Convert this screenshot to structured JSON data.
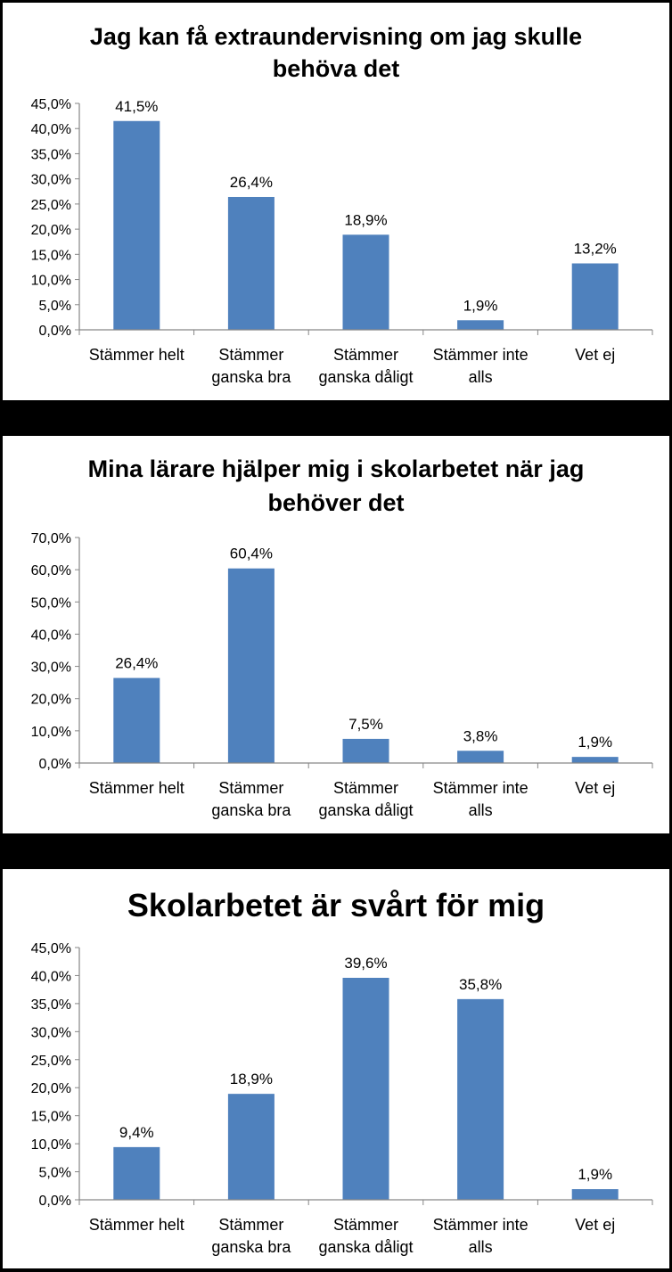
{
  "chart_data": [
    {
      "type": "bar",
      "title_lines": [
        "Jag kan få extraundervisning om jag skulle",
        "behöva det"
      ],
      "categories": [
        [
          "Stämmer helt"
        ],
        [
          "Stämmer",
          "ganska bra"
        ],
        [
          "Stämmer",
          "ganska dåligt"
        ],
        [
          "Stämmer inte",
          "alls"
        ],
        [
          "Vet ej"
        ]
      ],
      "values": [
        41.5,
        26.4,
        18.9,
        1.9,
        13.2
      ],
      "value_labels": [
        "41,5%",
        "26,4%",
        "18,9%",
        "1,9%",
        "13,2%"
      ],
      "ylim": [
        0,
        45
      ],
      "ytick_labels": [
        "0,0%",
        "5,0%",
        "10,0%",
        "15,0%",
        "20,0%",
        "25,0%",
        "30,0%",
        "35,0%",
        "40,0%",
        "45,0%"
      ],
      "color": "#4F81BD",
      "grid": false
    },
    {
      "type": "bar",
      "title_lines": [
        "Mina lärare hjälper mig i skolarbetet när jag",
        "behöver det"
      ],
      "categories": [
        [
          "Stämmer helt"
        ],
        [
          "Stämmer",
          "ganska bra"
        ],
        [
          "Stämmer",
          "ganska dåligt"
        ],
        [
          "Stämmer inte",
          "alls"
        ],
        [
          "Vet ej"
        ]
      ],
      "values": [
        26.4,
        60.4,
        7.5,
        3.8,
        1.9
      ],
      "value_labels": [
        "26,4%",
        "60,4%",
        "7,5%",
        "3,8%",
        "1,9%"
      ],
      "ylim": [
        0,
        70
      ],
      "ytick_labels": [
        "0,0%",
        "10,0%",
        "20,0%",
        "30,0%",
        "40,0%",
        "50,0%",
        "60,0%",
        "70,0%"
      ],
      "color": "#4F81BD",
      "grid": false
    },
    {
      "type": "bar",
      "title_lines": [
        "Skolarbetet är svårt för mig"
      ],
      "categories": [
        [
          "Stämmer helt"
        ],
        [
          "Stämmer",
          "ganska bra"
        ],
        [
          "Stämmer",
          "ganska dåligt"
        ],
        [
          "Stämmer inte",
          "alls"
        ],
        [
          "Vet ej"
        ]
      ],
      "values": [
        9.4,
        18.9,
        39.6,
        35.8,
        1.9
      ],
      "value_labels": [
        "9,4%",
        "18,9%",
        "39,6%",
        "35,8%",
        "1,9%"
      ],
      "ylim": [
        0,
        45
      ],
      "ytick_labels": [
        "0,0%",
        "5,0%",
        "10,0%",
        "15,0%",
        "20,0%",
        "25,0%",
        "30,0%",
        "35,0%",
        "40,0%",
        "45,0%"
      ],
      "color": "#4F81BD",
      "grid": false
    }
  ]
}
